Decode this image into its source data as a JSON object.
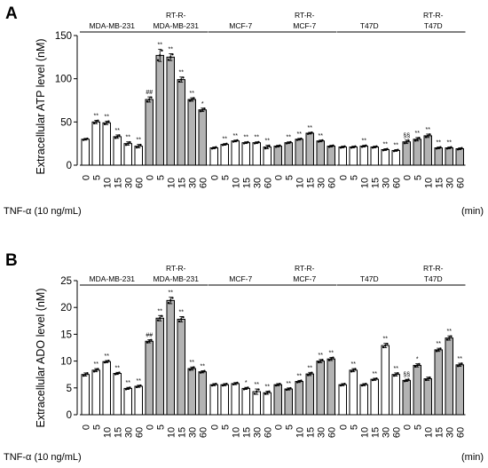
{
  "figure": {
    "treatment_label": "TNF-α  (10 ng/mL)",
    "time_unit": "(min)"
  },
  "colors": {
    "bar_control": "#ffffff",
    "bar_resistant": "#b3b3b3",
    "stroke": "#000000",
    "point": "#000000"
  },
  "chart_data": [
    {
      "panel": "A",
      "type": "bar",
      "ylabel": "Extracellular ATP level (nM)",
      "ylim": [
        0,
        150
      ],
      "yticks": [
        0,
        50,
        100,
        150
      ],
      "grid": false,
      "x_categories": [
        "0",
        "5",
        "10",
        "15",
        "30",
        "60"
      ],
      "groups": [
        {
          "label_lines": [
            "MDA-MB-231"
          ],
          "fill": "white",
          "values": [
            30,
            50,
            49,
            33,
            25,
            22
          ],
          "errors": [
            1,
            2,
            2,
            2,
            2,
            2
          ],
          "annotations": [
            "",
            "**",
            "**",
            "**",
            "**",
            "**"
          ]
        },
        {
          "label_lines": [
            "RT-R-",
            "MDA-MB-231"
          ],
          "fill": "gray",
          "values": [
            76,
            127,
            125,
            99,
            76,
            64
          ],
          "errors": [
            3,
            7,
            4,
            3,
            2,
            2
          ],
          "annotations": [
            "##",
            "**",
            "**",
            "**",
            "**",
            "*"
          ]
        },
        {
          "label_lines": [
            "MCF-7"
          ],
          "fill": "white",
          "values": [
            20,
            24,
            28,
            26,
            26,
            21
          ],
          "errors": [
            1,
            1,
            1,
            1,
            1,
            2
          ],
          "annotations": [
            "",
            "**",
            "**",
            "**",
            "**",
            "**"
          ]
        },
        {
          "label_lines": [
            "RT-R-",
            "MCF-7"
          ],
          "fill": "gray",
          "values": [
            22,
            26,
            30,
            37,
            28,
            22
          ],
          "errors": [
            1,
            1,
            1,
            1,
            1,
            1
          ],
          "annotations": [
            "",
            "**",
            "**",
            "**",
            "**",
            ""
          ]
        },
        {
          "label_lines": [
            "T47D"
          ],
          "fill": "white",
          "values": [
            21,
            21,
            22,
            21,
            18,
            17
          ],
          "errors": [
            1,
            1,
            1,
            1,
            1,
            1
          ],
          "annotations": [
            "",
            "",
            "**",
            "",
            "**",
            "**"
          ]
        },
        {
          "label_lines": [
            "RT-R-",
            "T47D"
          ],
          "fill": "gray",
          "values": [
            27,
            30,
            34,
            20,
            20,
            19
          ],
          "errors": [
            2,
            2,
            2,
            1,
            1,
            1
          ],
          "annotations": [
            "§§",
            "**",
            "**",
            "**",
            "**",
            ""
          ]
        }
      ]
    },
    {
      "panel": "B",
      "type": "bar",
      "ylabel": "Extracellular ADO level (nM)",
      "ylim": [
        0,
        25
      ],
      "yticks": [
        0,
        5,
        10,
        15,
        20,
        25
      ],
      "grid": false,
      "x_categories": [
        "0",
        "5",
        "10",
        "15",
        "30",
        "60"
      ],
      "groups": [
        {
          "label_lines": [
            "MDA-MB-231"
          ],
          "fill": "white",
          "values": [
            7.5,
            8.3,
            9.9,
            7.7,
            4.9,
            5.3
          ],
          "errors": [
            0.3,
            0.3,
            0.2,
            0.2,
            0.2,
            0.2
          ],
          "annotations": [
            "",
            "**",
            "**",
            "**",
            "**",
            "**"
          ]
        },
        {
          "label_lines": [
            "RT-R-",
            "MDA-MB-231"
          ],
          "fill": "gray",
          "values": [
            13.7,
            18.0,
            21.3,
            17.8,
            8.6,
            8.0
          ],
          "errors": [
            0.3,
            0.5,
            0.6,
            0.5,
            0.3,
            0.2
          ],
          "annotations": [
            "##",
            "**",
            "**",
            "**",
            "**",
            "**"
          ]
        },
        {
          "label_lines": [
            "MCF-7"
          ],
          "fill": "white",
          "values": [
            5.6,
            5.6,
            5.8,
            4.9,
            4.3,
            4.1
          ],
          "errors": [
            0.2,
            0.2,
            0.2,
            0.2,
            0.5,
            0.3
          ],
          "annotations": [
            "",
            "",
            "",
            "*",
            "**",
            "**"
          ]
        },
        {
          "label_lines": [
            "RT-R-",
            "MCF-7"
          ],
          "fill": "gray",
          "values": [
            5.6,
            4.8,
            6.2,
            7.6,
            10.0,
            10.4
          ],
          "errors": [
            0.2,
            0.2,
            0.2,
            0.3,
            0.3,
            0.3
          ],
          "annotations": [
            "",
            "**",
            "**",
            "**",
            "**",
            "**"
          ]
        },
        {
          "label_lines": [
            "T47D"
          ],
          "fill": "white",
          "values": [
            5.6,
            8.3,
            5.6,
            6.6,
            12.9,
            7.5
          ],
          "errors": [
            0.2,
            0.3,
            0.2,
            0.2,
            0.4,
            0.3
          ],
          "annotations": [
            "",
            "**",
            "",
            "**",
            "**",
            "**"
          ]
        },
        {
          "label_lines": [
            "RT-R-",
            "T47D"
          ],
          "fill": "gray",
          "values": [
            6.4,
            9.2,
            6.7,
            12.1,
            14.3,
            9.3
          ],
          "errors": [
            0.2,
            0.3,
            0.3,
            0.3,
            0.4,
            0.3
          ],
          "annotations": [
            "§§",
            "*",
            "",
            "**",
            "**",
            "**"
          ]
        }
      ]
    }
  ]
}
